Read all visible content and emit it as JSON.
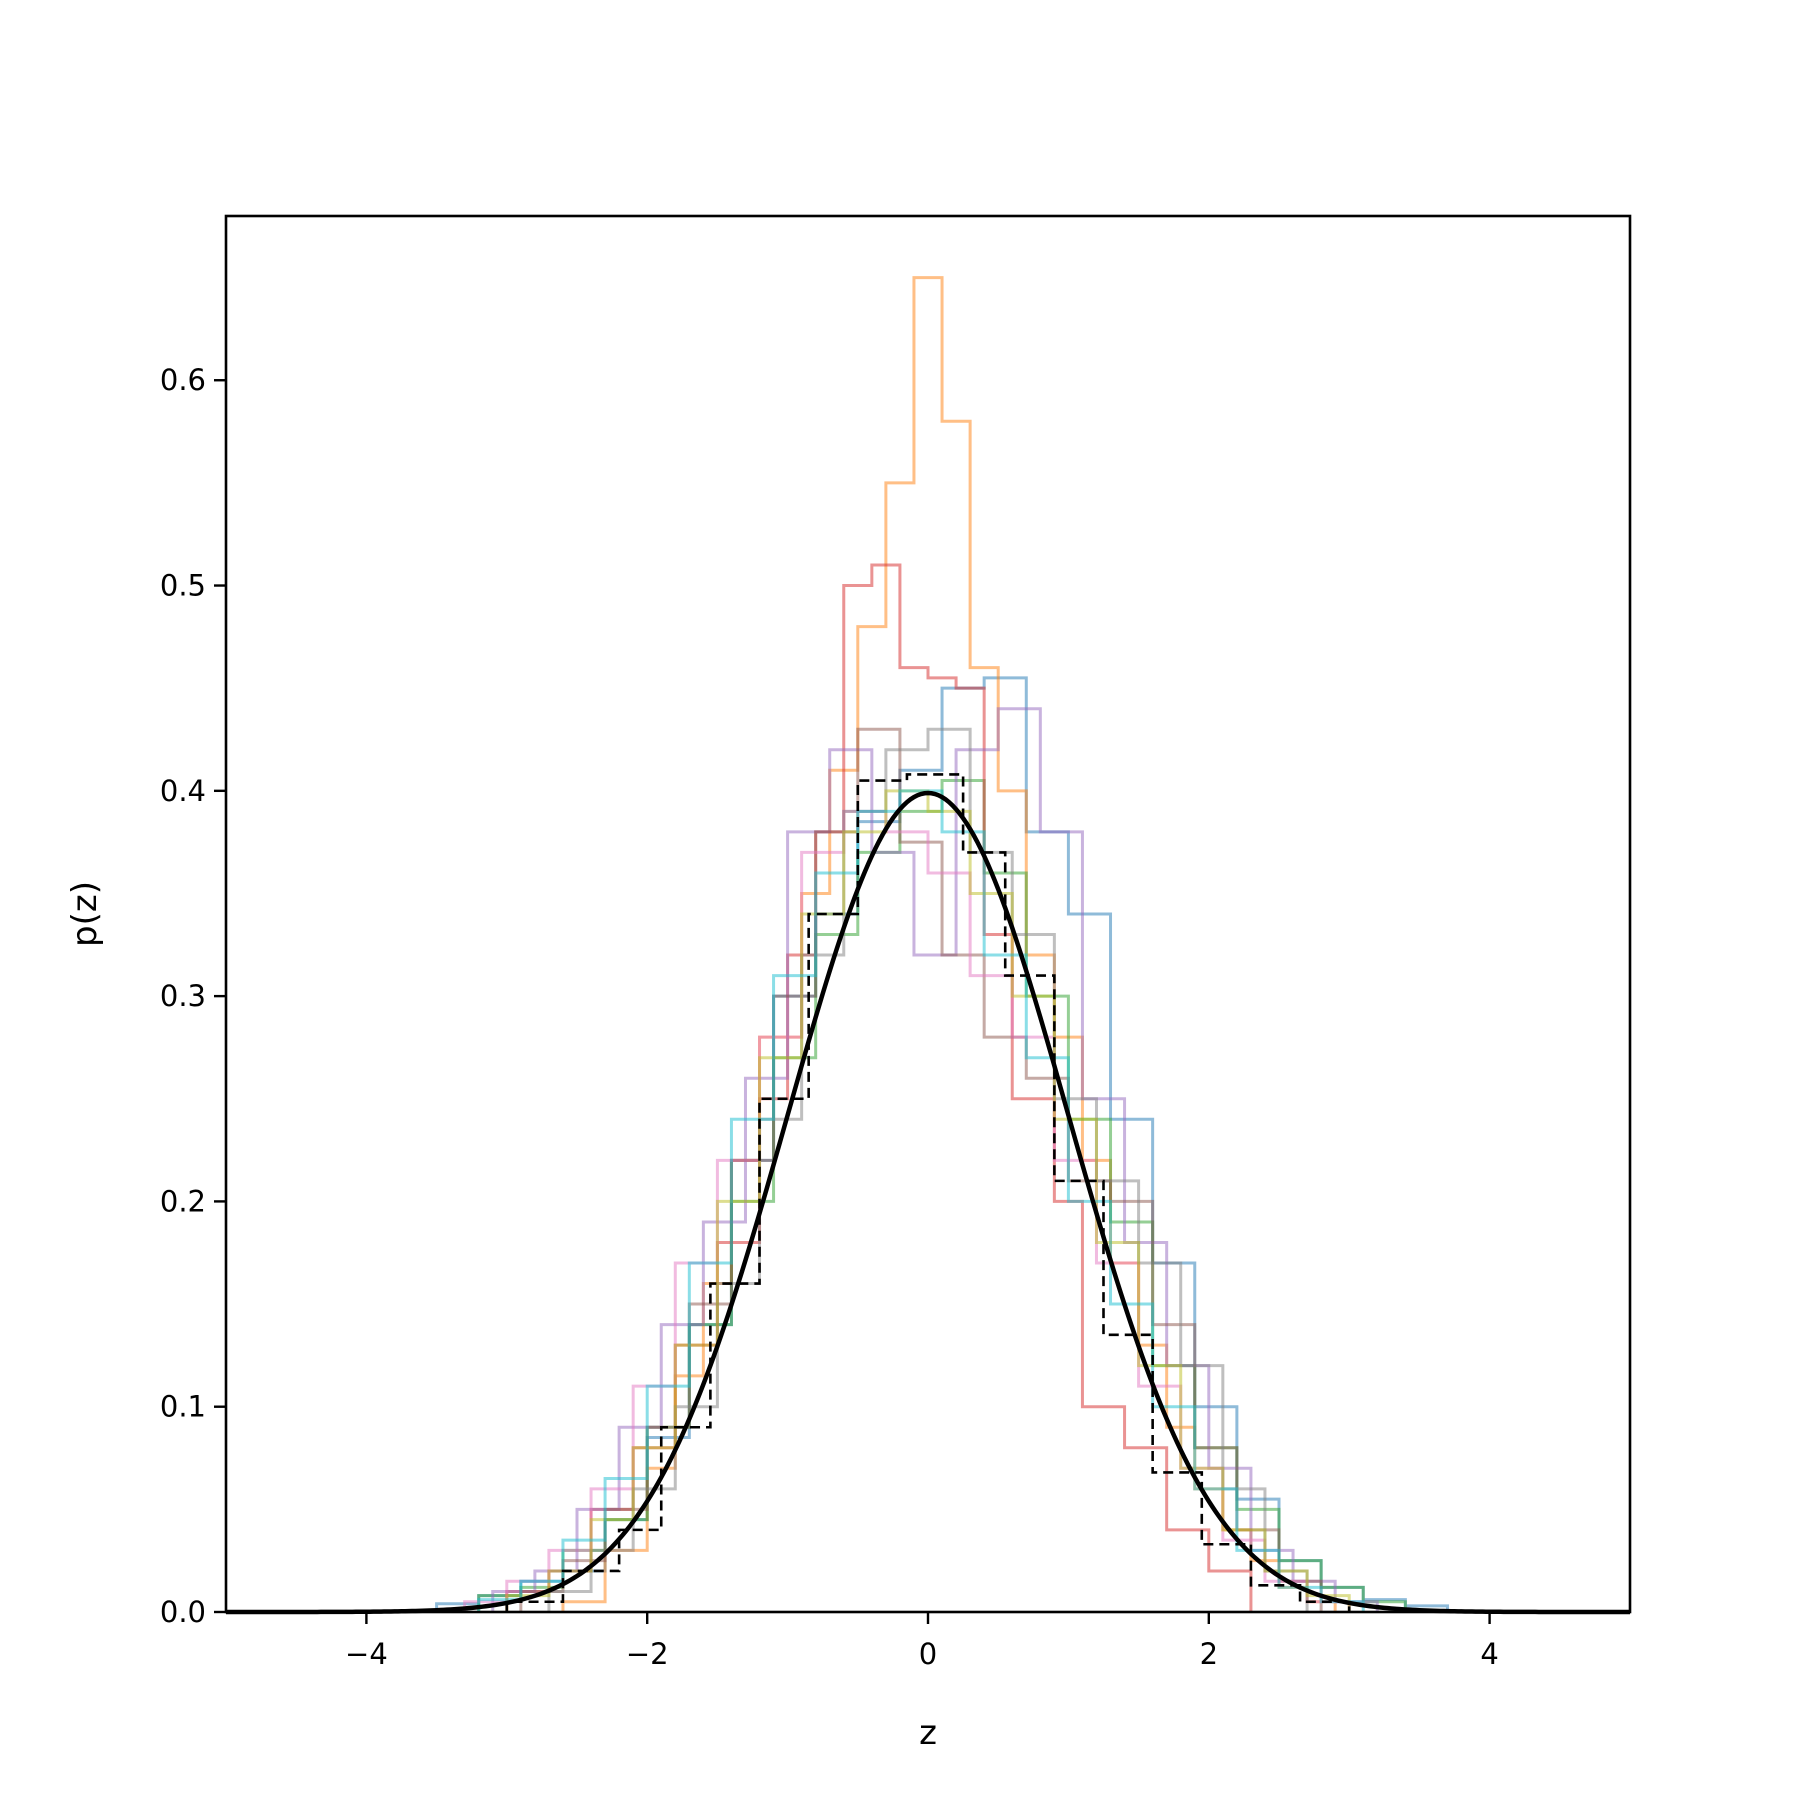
{
  "chart_data": {
    "type": "histogram-overlay",
    "title": "",
    "xlabel": "z",
    "ylabel": "p(z)",
    "xlim": [
      -5,
      5
    ],
    "ylim": [
      0,
      0.68
    ],
    "xticks": [
      -4,
      -2,
      0,
      2,
      4
    ],
    "xtick_labels": [
      "−4",
      "−2",
      "0",
      "2",
      "4"
    ],
    "yticks": [
      0.0,
      0.1,
      0.2,
      0.3,
      0.4,
      0.5,
      0.6
    ],
    "ytick_labels": [
      "0.0",
      "0.1",
      "0.2",
      "0.3",
      "0.4",
      "0.5",
      "0.6"
    ],
    "grid": false,
    "legend": "none",
    "series": [
      {
        "style": "step",
        "color": "#1f77b4",
        "opacity": 0.5,
        "edges": [
          -3.5,
          -3.2,
          -2.9,
          -2.6,
          -2.3,
          -2.0,
          -1.7,
          -1.4,
          -1.1,
          -0.8,
          -0.5,
          -0.2,
          0.1,
          0.4,
          0.7,
          1.0,
          1.3,
          1.6,
          1.9,
          2.2,
          2.5,
          2.8,
          3.1,
          3.4,
          3.7
        ],
        "values": [
          0.004,
          0.008,
          0.015,
          0.02,
          0.045,
          0.085,
          0.14,
          0.22,
          0.3,
          0.34,
          0.385,
          0.41,
          0.45,
          0.455,
          0.38,
          0.34,
          0.24,
          0.17,
          0.1,
          0.055,
          0.025,
          0.012,
          0.006,
          0.003
        ]
      },
      {
        "style": "step",
        "color": "#ff7f0e",
        "opacity": 0.5,
        "edges": [
          -2.6,
          -2.3,
          -2.0,
          -1.8,
          -1.6,
          -1.4,
          -1.2,
          -0.9,
          -0.7,
          -0.5,
          -0.3,
          -0.1,
          0.1,
          0.3,
          0.5,
          0.7,
          0.9,
          1.1,
          1.3,
          1.5,
          1.7,
          1.9,
          2.1,
          2.3,
          2.5,
          2.7,
          2.9
        ],
        "values": [
          0.005,
          0.03,
          0.07,
          0.115,
          0.16,
          0.22,
          0.28,
          0.35,
          0.41,
          0.48,
          0.55,
          0.65,
          0.58,
          0.46,
          0.4,
          0.32,
          0.28,
          0.22,
          0.17,
          0.13,
          0.09,
          0.06,
          0.04,
          0.025,
          0.012,
          0.005
        ]
      },
      {
        "style": "step",
        "color": "#2ca02c",
        "opacity": 0.5,
        "edges": [
          -3.2,
          -2.9,
          -2.6,
          -2.3,
          -2.0,
          -1.7,
          -1.4,
          -1.1,
          -0.8,
          -0.5,
          -0.2,
          0.1,
          0.4,
          0.7,
          1.0,
          1.3,
          1.6,
          1.9,
          2.2,
          2.5,
          2.8,
          3.1,
          3.4
        ],
        "values": [
          0.008,
          0.012,
          0.03,
          0.045,
          0.09,
          0.14,
          0.2,
          0.27,
          0.33,
          0.37,
          0.39,
          0.405,
          0.36,
          0.3,
          0.24,
          0.19,
          0.12,
          0.08,
          0.05,
          0.025,
          0.012,
          0.005
        ]
      },
      {
        "style": "step",
        "color": "#d62728",
        "opacity": 0.5,
        "edges": [
          -3.0,
          -2.7,
          -2.4,
          -2.1,
          -1.8,
          -1.5,
          -1.2,
          -1.0,
          -0.8,
          -0.6,
          -0.4,
          -0.2,
          0.0,
          0.2,
          0.4,
          0.6,
          0.9,
          1.1,
          1.4,
          1.7,
          2.0,
          2.3
        ],
        "values": [
          0.01,
          0.02,
          0.05,
          0.08,
          0.13,
          0.18,
          0.25,
          0.32,
          0.38,
          0.5,
          0.51,
          0.46,
          0.455,
          0.45,
          0.33,
          0.25,
          0.2,
          0.1,
          0.08,
          0.04,
          0.02
        ]
      },
      {
        "style": "step",
        "color": "#9467bd",
        "opacity": 0.5,
        "edges": [
          -3.1,
          -2.8,
          -2.5,
          -2.2,
          -1.9,
          -1.6,
          -1.3,
          -1.0,
          -0.7,
          -0.4,
          -0.1,
          0.2,
          0.5,
          0.8,
          1.1,
          1.4,
          1.7,
          2.0,
          2.3,
          2.6,
          2.9,
          3.2
        ],
        "values": [
          0.01,
          0.02,
          0.05,
          0.09,
          0.14,
          0.19,
          0.26,
          0.38,
          0.42,
          0.37,
          0.32,
          0.42,
          0.44,
          0.38,
          0.25,
          0.18,
          0.12,
          0.07,
          0.03,
          0.015,
          0.005
        ]
      },
      {
        "style": "step",
        "color": "#8c564b",
        "opacity": 0.5,
        "edges": [
          -2.9,
          -2.6,
          -2.3,
          -2.0,
          -1.7,
          -1.4,
          -1.1,
          -0.8,
          -0.5,
          -0.2,
          0.1,
          0.4,
          0.7,
          1.0,
          1.3,
          1.6,
          1.9,
          2.2,
          2.5,
          2.8
        ],
        "values": [
          0.01,
          0.025,
          0.05,
          0.09,
          0.15,
          0.22,
          0.3,
          0.38,
          0.43,
          0.375,
          0.32,
          0.28,
          0.26,
          0.21,
          0.2,
          0.14,
          0.08,
          0.04,
          0.015
        ]
      },
      {
        "style": "step",
        "color": "#e377c2",
        "opacity": 0.5,
        "edges": [
          -3.3,
          -3.0,
          -2.7,
          -2.4,
          -2.1,
          -1.8,
          -1.5,
          -1.2,
          -0.9,
          -0.6,
          -0.3,
          0.0,
          0.3,
          0.6,
          0.9,
          1.2,
          1.5,
          1.8,
          2.1,
          2.4,
          2.7,
          3.0
        ],
        "values": [
          0.005,
          0.015,
          0.03,
          0.06,
          0.11,
          0.17,
          0.22,
          0.28,
          0.37,
          0.39,
          0.38,
          0.36,
          0.31,
          0.28,
          0.22,
          0.17,
          0.11,
          0.07,
          0.035,
          0.015,
          0.005
        ]
      },
      {
        "style": "step",
        "color": "#7f7f7f",
        "opacity": 0.5,
        "edges": [
          -2.7,
          -2.4,
          -2.1,
          -1.8,
          -1.5,
          -1.2,
          -0.9,
          -0.6,
          -0.3,
          0.0,
          0.3,
          0.6,
          0.9,
          1.2,
          1.5,
          1.8,
          2.1,
          2.4,
          2.7
        ],
        "values": [
          0.01,
          0.03,
          0.06,
          0.1,
          0.16,
          0.24,
          0.32,
          0.39,
          0.42,
          0.43,
          0.37,
          0.33,
          0.25,
          0.21,
          0.17,
          0.12,
          0.06,
          0.02
        ]
      },
      {
        "style": "step",
        "color": "#bcbd22",
        "opacity": 0.5,
        "edges": [
          -3.0,
          -2.7,
          -2.4,
          -2.1,
          -1.8,
          -1.5,
          -1.2,
          -0.9,
          -0.6,
          -0.3,
          0.0,
          0.3,
          0.6,
          0.9,
          1.2,
          1.5,
          1.8,
          2.1,
          2.4,
          2.7,
          3.0
        ],
        "values": [
          0.008,
          0.02,
          0.045,
          0.08,
          0.13,
          0.2,
          0.27,
          0.34,
          0.38,
          0.4,
          0.39,
          0.35,
          0.3,
          0.24,
          0.18,
          0.12,
          0.07,
          0.04,
          0.02,
          0.008
        ]
      },
      {
        "style": "step",
        "color": "#17becf",
        "opacity": 0.5,
        "edges": [
          -3.2,
          -2.9,
          -2.6,
          -2.3,
          -2.0,
          -1.7,
          -1.4,
          -1.1,
          -0.8,
          -0.5,
          -0.2,
          0.1,
          0.4,
          0.7,
          1.0,
          1.3,
          1.6,
          1.9,
          2.2,
          2.5,
          2.8,
          3.1
        ],
        "values": [
          0.006,
          0.015,
          0.035,
          0.065,
          0.11,
          0.17,
          0.24,
          0.31,
          0.36,
          0.39,
          0.4,
          0.38,
          0.32,
          0.27,
          0.2,
          0.15,
          0.1,
          0.06,
          0.03,
          0.012,
          0.005
        ]
      },
      {
        "style": "step-dashed",
        "color": "#000000",
        "opacity": 1.0,
        "edges": [
          -3.0,
          -2.6,
          -2.2,
          -1.9,
          -1.55,
          -1.2,
          -0.85,
          -0.5,
          -0.15,
          0.25,
          0.55,
          0.9,
          1.25,
          1.6,
          1.95,
          2.3,
          2.65,
          3.0
        ],
        "values": [
          0.005,
          0.02,
          0.04,
          0.09,
          0.16,
          0.25,
          0.34,
          0.405,
          0.408,
          0.37,
          0.31,
          0.21,
          0.135,
          0.068,
          0.033,
          0.013,
          0.005
        ]
      },
      {
        "style": "line",
        "color": "#000000",
        "opacity": 1.0,
        "function": "normal-pdf",
        "mean": 0,
        "std": 1,
        "x_range": [
          -5,
          5
        ]
      }
    ]
  }
}
